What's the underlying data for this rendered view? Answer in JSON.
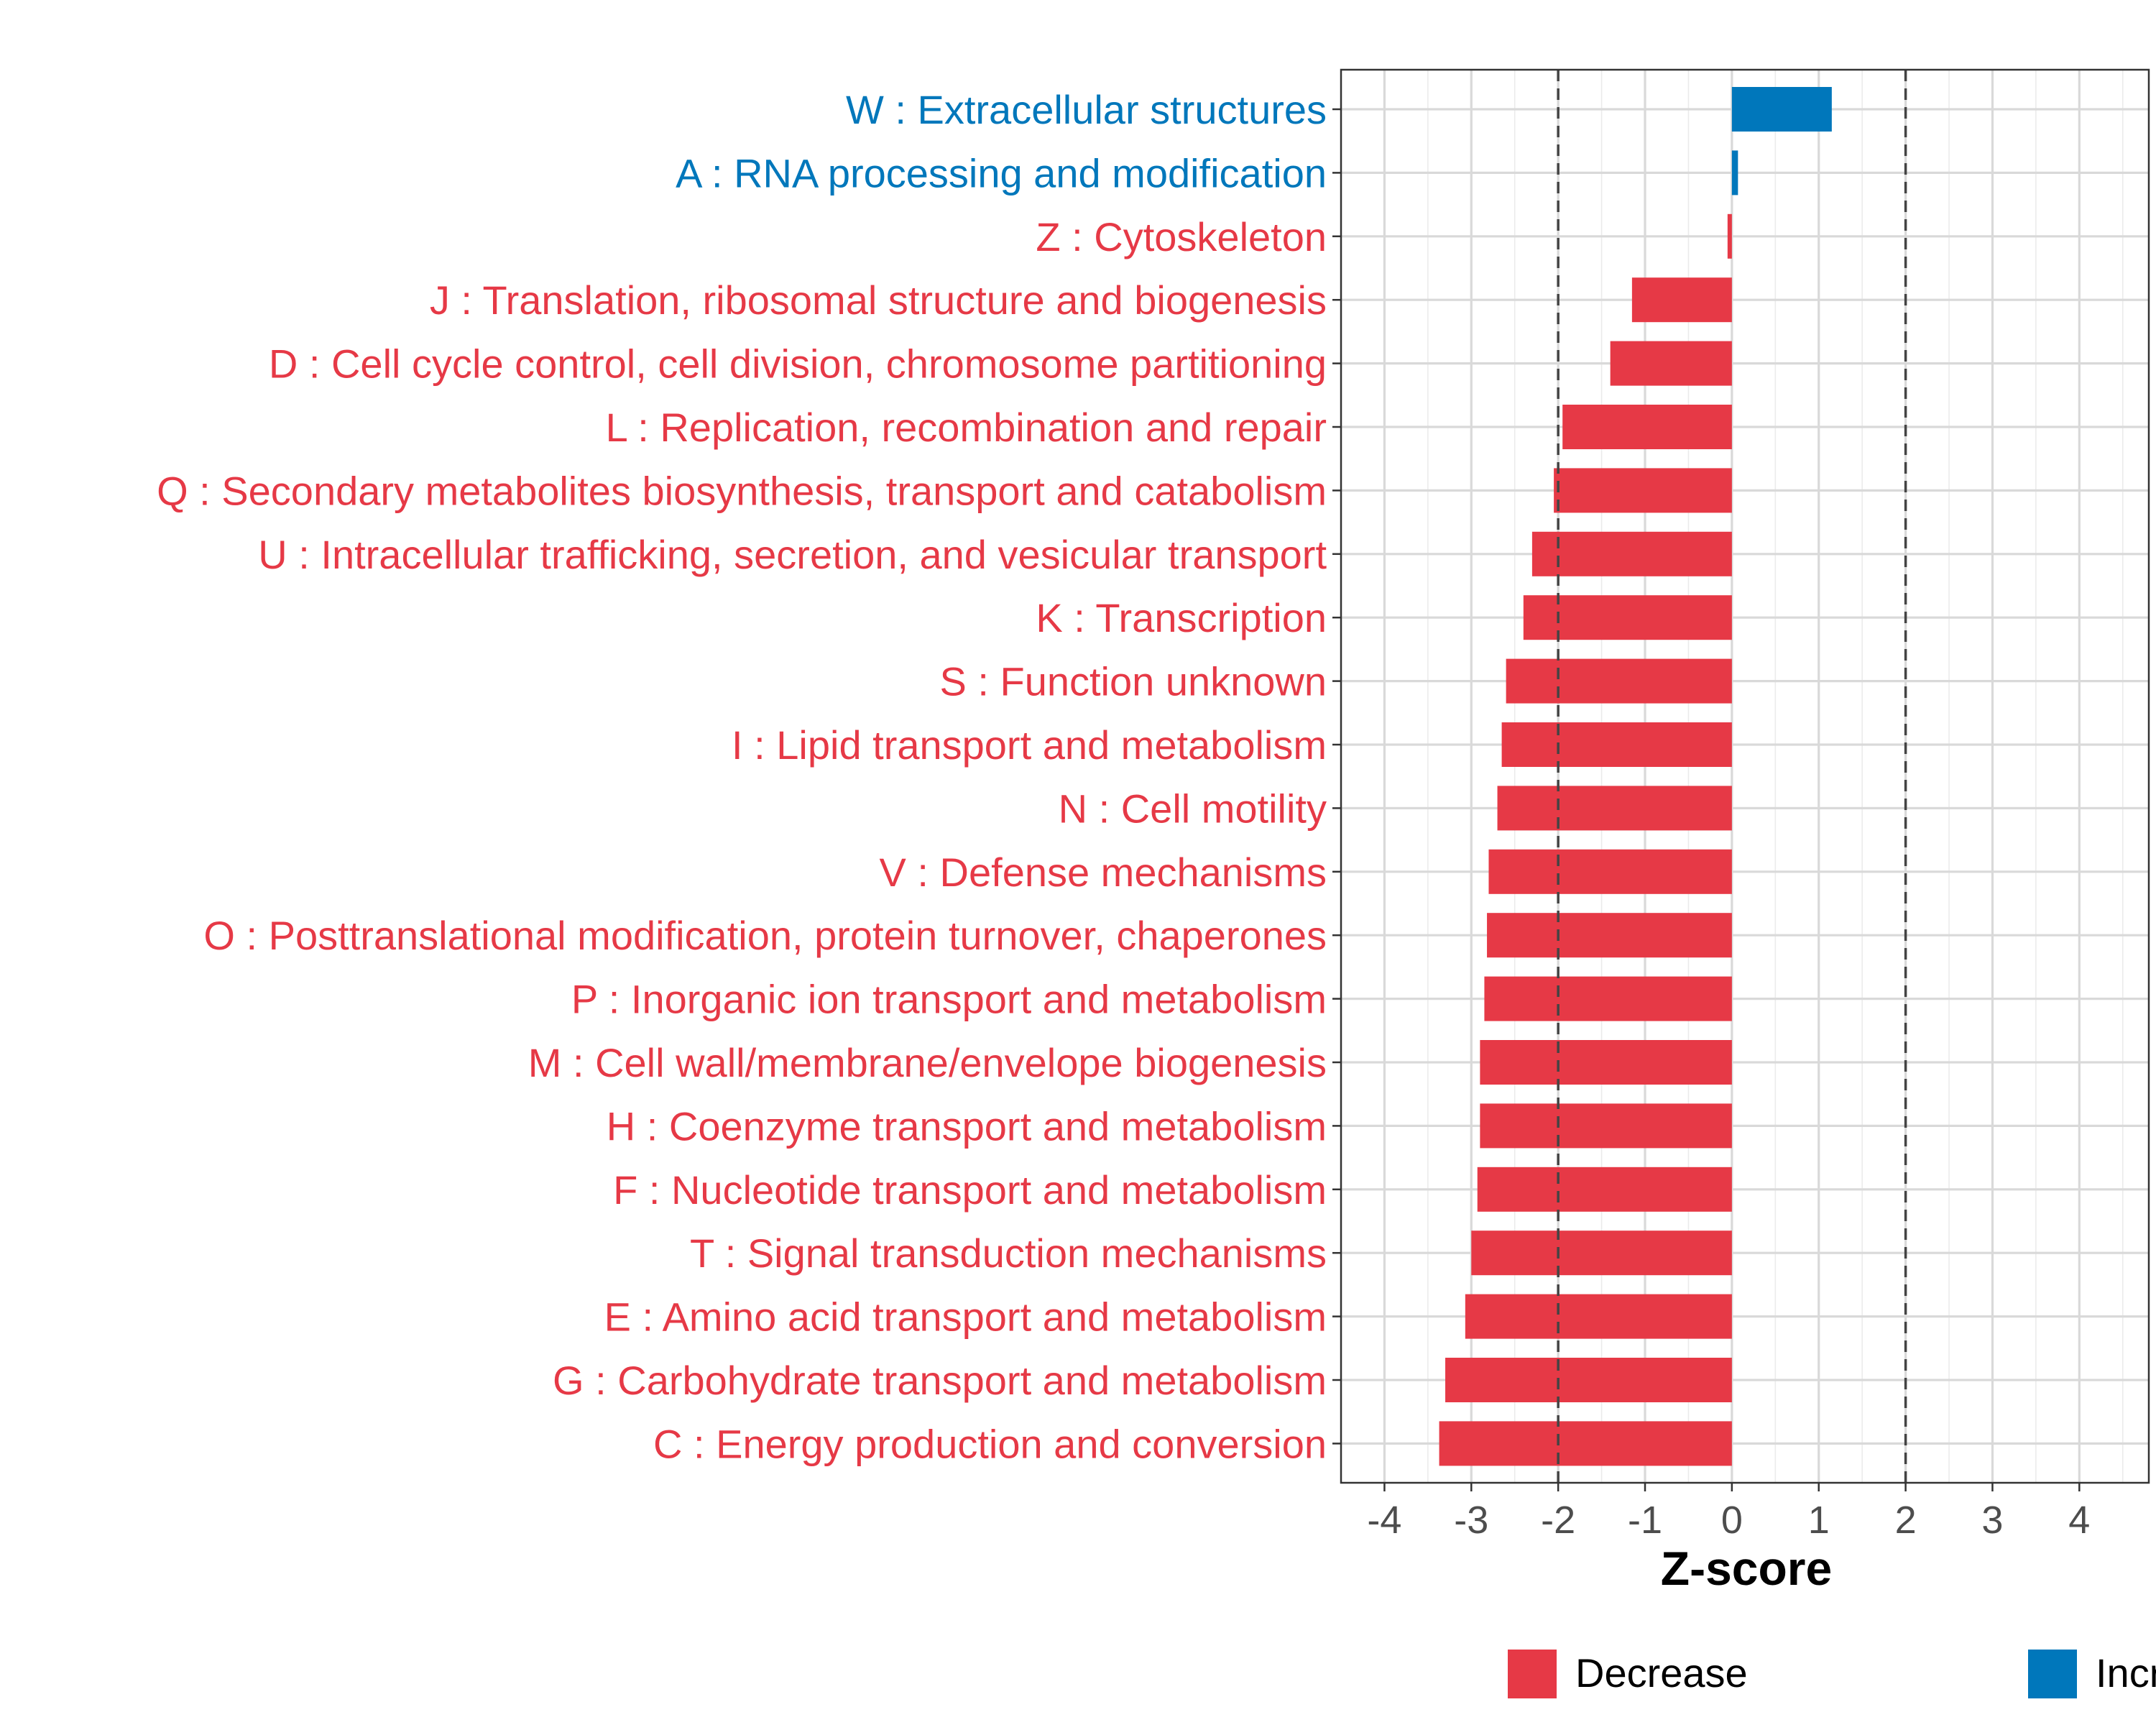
{
  "chart_data": {
    "type": "bar",
    "orientation": "horizontal",
    "xlabel": "Z-score",
    "xlim": [
      -4.5,
      4.8
    ],
    "xticks": [
      -4,
      -3,
      -2,
      -1,
      0,
      1,
      2,
      3,
      4
    ],
    "xtick_labels": [
      "-4",
      "-3",
      "-2",
      "-1",
      "0",
      "1",
      "2",
      "3",
      "4"
    ],
    "reference_lines": [
      -2,
      2
    ],
    "grid": true,
    "legend_position": "bottom",
    "colors": {
      "Decrease": "#e63946",
      "Increase": "#0077bb"
    },
    "legend": [
      {
        "label": "Decrease",
        "color": "#e63946"
      },
      {
        "label": "Increase",
        "color": "#0077bb"
      }
    ],
    "categories": [
      "W : Extracellular structures",
      "A : RNA processing and modification",
      "Z : Cytoskeleton",
      "J : Translation, ribosomal structure and biogenesis",
      "D : Cell cycle control, cell division, chromosome partitioning",
      "L : Replication, recombination and repair",
      "Q : Secondary metabolites biosynthesis, transport and catabolism",
      "U : Intracellular trafficking, secretion, and vesicular transport",
      "K : Transcription",
      "S : Function unknown",
      "I : Lipid transport and metabolism",
      "N : Cell motility",
      "V : Defense mechanisms",
      "O : Posttranslational modification, protein turnover, chaperones",
      "P : Inorganic ion transport and metabolism",
      "M : Cell wall/membrane/envelope biogenesis",
      "H : Coenzyme transport and metabolism",
      "F : Nucleotide transport and metabolism",
      "T : Signal transduction mechanisms",
      "E : Amino acid transport and metabolism",
      "G : Carbohydrate transport and metabolism",
      "C : Energy production and conversion"
    ],
    "values": [
      1.15,
      0.07,
      -0.05,
      -1.15,
      -1.4,
      -1.95,
      -2.05,
      -2.3,
      -2.4,
      -2.6,
      -2.65,
      -2.7,
      -2.8,
      -2.82,
      -2.85,
      -2.9,
      -2.9,
      -2.93,
      -3.0,
      -3.07,
      -3.3,
      -3.37
    ],
    "groups": [
      "Increase",
      "Increase",
      "Decrease",
      "Decrease",
      "Decrease",
      "Decrease",
      "Decrease",
      "Decrease",
      "Decrease",
      "Decrease",
      "Decrease",
      "Decrease",
      "Decrease",
      "Decrease",
      "Decrease",
      "Decrease",
      "Decrease",
      "Decrease",
      "Decrease",
      "Decrease",
      "Decrease",
      "Decrease"
    ]
  }
}
